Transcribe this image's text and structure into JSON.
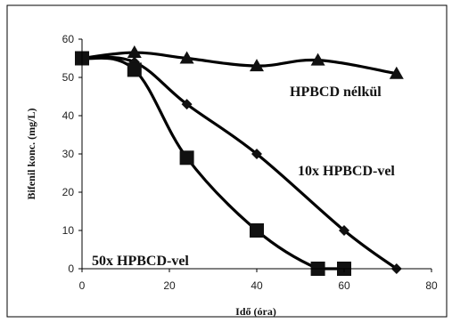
{
  "chart_data": {
    "type": "line",
    "xlabel": "Idő (óra)",
    "ylabel": "Bifenil konc. (mg/L)",
    "xlim": [
      0,
      80
    ],
    "ylim": [
      0,
      60
    ],
    "xticks": [
      "0",
      "20",
      "40",
      "60",
      "80"
    ],
    "yticks": [
      "0",
      "10",
      "20",
      "30",
      "40",
      "50",
      "60"
    ],
    "grid": false,
    "series": [
      {
        "name": "HPBCD nélkül",
        "marker": "triangle",
        "color": "#000000",
        "x": [
          0,
          12,
          24,
          40,
          54,
          72
        ],
        "y": [
          55,
          56.5,
          55,
          53,
          54.5,
          51
        ]
      },
      {
        "name": "10x HPBCD-vel",
        "marker": "diamond",
        "color": "#000000",
        "x": [
          0,
          12,
          24,
          40,
          60,
          72
        ],
        "y": [
          55,
          54,
          43,
          30,
          10,
          0
        ]
      },
      {
        "name": "50x HPBCD-vel",
        "marker": "square",
        "color": "#000000",
        "x": [
          0,
          12,
          24,
          40,
          54,
          60
        ],
        "y": [
          55,
          52,
          29,
          10,
          0,
          0
        ]
      }
    ]
  }
}
